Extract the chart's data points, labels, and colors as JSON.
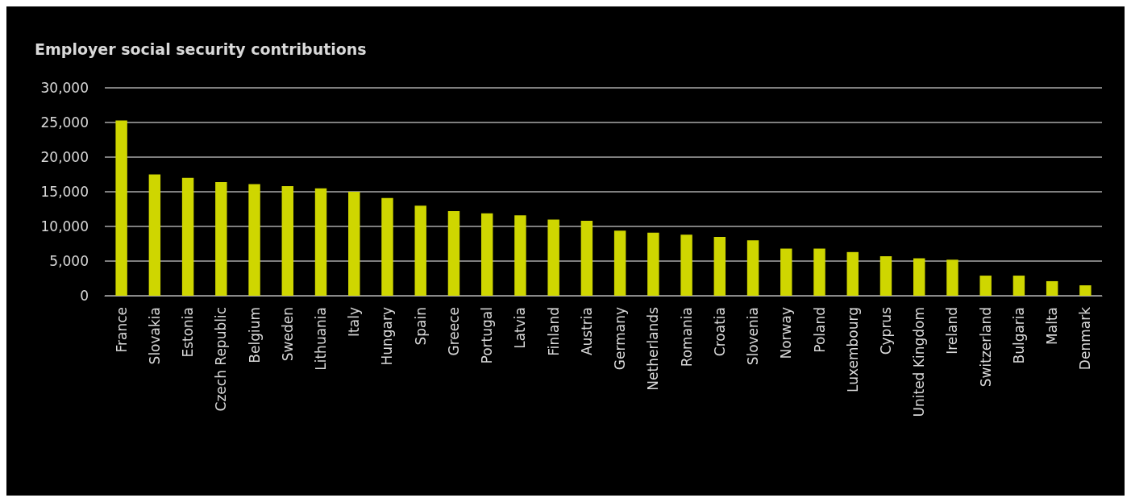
{
  "chart_data": {
    "type": "bar",
    "title": "Employer social security contributions",
    "categories": [
      "France",
      "Slovakia",
      "Estonia",
      "Czech Republic",
      "Belgium",
      "Sweden",
      "Lithuania",
      "Italy",
      "Hungary",
      "Spain",
      "Greece",
      "Portugal",
      "Latvia",
      "Finland",
      "Austria",
      "Germany",
      "Netherlands",
      "Romania",
      "Croatia",
      "Slovenia",
      "Norway",
      "Poland",
      "Luxembourg",
      "Cyprus",
      "United Kingdom",
      "Ireland",
      "Switzerland",
      "Bulgaria",
      "Malta",
      "Denmark"
    ],
    "values": [
      25300,
      17500,
      17000,
      16400,
      16100,
      15800,
      15500,
      15000,
      14100,
      13000,
      12200,
      11900,
      11600,
      11000,
      10800,
      9400,
      9100,
      8800,
      8500,
      8000,
      6800,
      6800,
      6300,
      5700,
      5400,
      5200,
      2900,
      2900,
      2100,
      1500
    ],
    "color": "#cfd600",
    "ylim": [
      0,
      30000
    ],
    "yticks": [
      0,
      {
        "value": 5000,
        "label": "5,000"
      },
      {
        "value": 10000,
        "label": "10,000"
      },
      {
        "value": 15000,
        "label": "15,000"
      },
      {
        "value": 20000,
        "label": "20,000"
      },
      {
        "value": 25000,
        "label": "25,000"
      },
      {
        "value": 30000,
        "label": "30,000"
      }
    ],
    "grid": "y"
  }
}
